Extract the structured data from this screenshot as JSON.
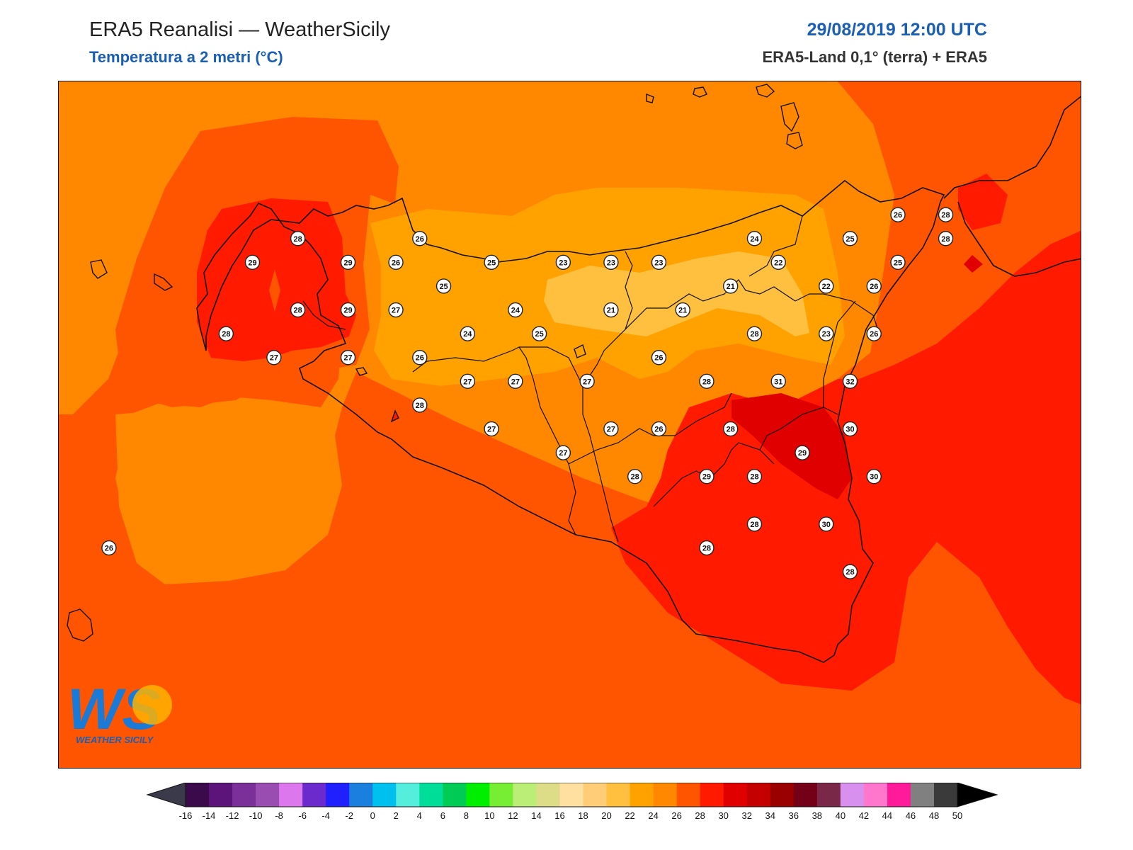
{
  "header": {
    "title": "ERA5 Reanalisi — WeatherSicily",
    "subtitle": "Temperatura a 2 metri (°C)",
    "datetime": "29/08/2019 12:00 UTC",
    "source": "ERA5-Land 0,1° (terra) + ERA5"
  },
  "logo": {
    "letters": "WS",
    "text": "WEATHER SICILY"
  },
  "colors": {
    "t22": "#ffa200",
    "t24": "#ff8800",
    "t26": "#ff5500",
    "t28": "#ff1a00",
    "t30": "#e00000",
    "t18": "#ffc84a",
    "t20": "#ffc04a"
  },
  "colorbar": {
    "ticks": [
      "-16",
      "-14",
      "-12",
      "-10",
      "-8",
      "-6",
      "-4",
      "-2",
      "0",
      "2",
      "4",
      "6",
      "8",
      "10",
      "12",
      "14",
      "16",
      "18",
      "20",
      "22",
      "24",
      "26",
      "28",
      "30",
      "32",
      "34",
      "36",
      "38",
      "40",
      "42",
      "44",
      "46",
      "48",
      "50"
    ],
    "colors": [
      "#3a0a4a",
      "#5c137a",
      "#7b2f98",
      "#9a4db0",
      "#dd77ee",
      "#6a2acc",
      "#2020ff",
      "#1a7fdd",
      "#00c0ee",
      "#55eedd",
      "#00dd99",
      "#00cc55",
      "#00ee00",
      "#77ee33",
      "#bbee77",
      "#dddd88",
      "#ffe0a0",
      "#ffcc77",
      "#ffc040",
      "#ffa200",
      "#ff8800",
      "#ff5500",
      "#ff1a00",
      "#e00000",
      "#c40000",
      "#9a0000",
      "#740018",
      "#7a2848",
      "#d890ee",
      "#ff77cc",
      "#ff1a99",
      "#808080",
      "#3a3a3a"
    ]
  },
  "stations": [
    {
      "v": "28",
      "lon": 12.72,
      "lat": 38.16
    },
    {
      "v": "29",
      "lon": 12.53,
      "lat": 38.06
    },
    {
      "v": "29",
      "lon": 12.93,
      "lat": 38.06
    },
    {
      "v": "26",
      "lon": 13.13,
      "lat": 38.06
    },
    {
      "v": "26",
      "lon": 13.23,
      "lat": 38.16
    },
    {
      "v": "25",
      "lon": 13.53,
      "lat": 38.06
    },
    {
      "v": "25",
      "lon": 13.33,
      "lat": 37.96
    },
    {
      "v": "28",
      "lon": 12.72,
      "lat": 37.86
    },
    {
      "v": "29",
      "lon": 12.93,
      "lat": 37.86
    },
    {
      "v": "27",
      "lon": 13.13,
      "lat": 37.86
    },
    {
      "v": "24",
      "lon": 13.63,
      "lat": 37.86
    },
    {
      "v": "28",
      "lon": 12.42,
      "lat": 37.76
    },
    {
      "v": "24",
      "lon": 13.43,
      "lat": 37.76
    },
    {
      "v": "25",
      "lon": 13.73,
      "lat": 37.76
    },
    {
      "v": "27",
      "lon": 12.62,
      "lat": 37.66
    },
    {
      "v": "27",
      "lon": 12.93,
      "lat": 37.66
    },
    {
      "v": "26",
      "lon": 13.23,
      "lat": 37.66
    },
    {
      "v": "23",
      "lon": 13.83,
      "lat": 38.06
    },
    {
      "v": "23",
      "lon": 14.03,
      "lat": 38.06
    },
    {
      "v": "23",
      "lon": 14.23,
      "lat": 38.06
    },
    {
      "v": "21",
      "lon": 14.03,
      "lat": 37.86
    },
    {
      "v": "21",
      "lon": 14.33,
      "lat": 37.86
    },
    {
      "v": "21",
      "lon": 14.53,
      "lat": 37.96
    },
    {
      "v": "24",
      "lon": 14.63,
      "lat": 38.16
    },
    {
      "v": "22",
      "lon": 14.73,
      "lat": 38.06
    },
    {
      "v": "22",
      "lon": 14.93,
      "lat": 37.96
    },
    {
      "v": "25",
      "lon": 15.03,
      "lat": 38.16
    },
    {
      "v": "26",
      "lon": 15.23,
      "lat": 38.26
    },
    {
      "v": "28",
      "lon": 15.43,
      "lat": 38.26
    },
    {
      "v": "28",
      "lon": 15.43,
      "lat": 38.16
    },
    {
      "v": "25",
      "lon": 15.23,
      "lat": 38.06
    },
    {
      "v": "26",
      "lon": 15.13,
      "lat": 37.96
    },
    {
      "v": "28",
      "lon": 14.63,
      "lat": 37.76
    },
    {
      "v": "23",
      "lon": 14.93,
      "lat": 37.76
    },
    {
      "v": "26",
      "lon": 15.13,
      "lat": 37.76
    },
    {
      "v": "26",
      "lon": 14.23,
      "lat": 37.66
    },
    {
      "v": "27",
      "lon": 13.43,
      "lat": 37.56
    },
    {
      "v": "27",
      "lon": 13.63,
      "lat": 37.56
    },
    {
      "v": "27",
      "lon": 13.93,
      "lat": 37.56
    },
    {
      "v": "28",
      "lon": 14.43,
      "lat": 37.56
    },
    {
      "v": "31",
      "lon": 14.73,
      "lat": 37.56
    },
    {
      "v": "32",
      "lon": 15.03,
      "lat": 37.56
    },
    {
      "v": "28",
      "lon": 13.23,
      "lat": 37.46
    },
    {
      "v": "27",
      "lon": 13.53,
      "lat": 37.36
    },
    {
      "v": "27",
      "lon": 14.03,
      "lat": 37.36
    },
    {
      "v": "26",
      "lon": 14.23,
      "lat": 37.36
    },
    {
      "v": "28",
      "lon": 14.53,
      "lat": 37.36
    },
    {
      "v": "30",
      "lon": 15.03,
      "lat": 37.36
    },
    {
      "v": "27",
      "lon": 13.83,
      "lat": 37.26
    },
    {
      "v": "29",
      "lon": 14.83,
      "lat": 37.26
    },
    {
      "v": "28",
      "lon": 14.13,
      "lat": 37.16
    },
    {
      "v": "29",
      "lon": 14.43,
      "lat": 37.16
    },
    {
      "v": "28",
      "lon": 14.63,
      "lat": 37.16
    },
    {
      "v": "30",
      "lon": 15.13,
      "lat": 37.16
    },
    {
      "v": "28",
      "lon": 14.63,
      "lat": 36.96
    },
    {
      "v": "30",
      "lon": 14.93,
      "lat": 36.96
    },
    {
      "v": "28",
      "lon": 14.43,
      "lat": 36.86
    },
    {
      "v": "28",
      "lon": 15.03,
      "lat": 36.76
    },
    {
      "v": "26",
      "lon": 11.93,
      "lat": 36.86
    }
  ]
}
